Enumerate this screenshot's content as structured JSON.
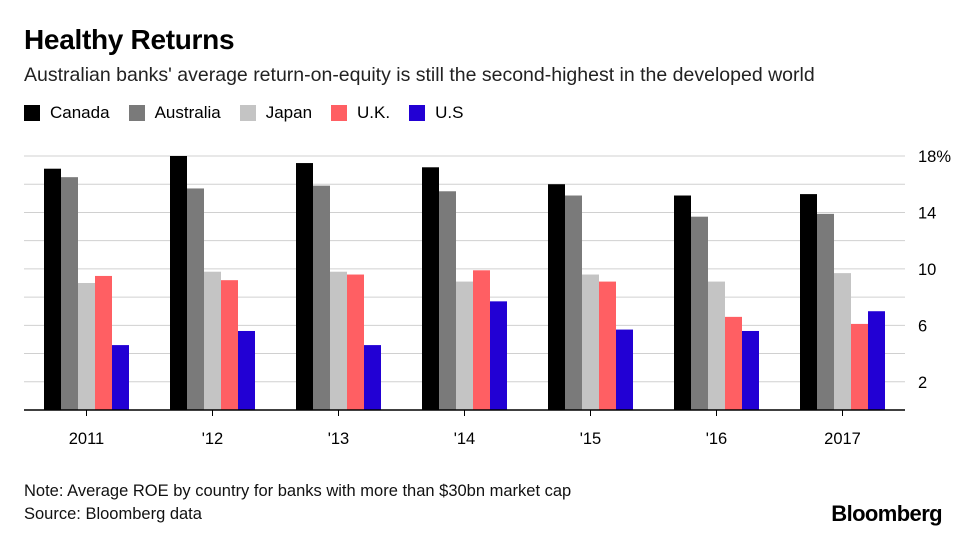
{
  "header": {
    "title": "Healthy Returns",
    "subtitle": "Australian banks' average return-on-equity is still the second-highest in the developed world"
  },
  "footer": {
    "note": "Note: Average ROE by country for banks with more than $30bn market cap",
    "source": "Source: Bloomberg data",
    "logo": "Bloomberg"
  },
  "chart_data": {
    "type": "bar",
    "categories": [
      "2011",
      "'12",
      "'13",
      "'14",
      "'15",
      "'16",
      "2017"
    ],
    "series": [
      {
        "name": "Canada",
        "color": "#000000",
        "values": [
          17.1,
          18.0,
          17.5,
          17.2,
          16.0,
          15.2,
          15.3
        ]
      },
      {
        "name": "Australia",
        "color": "#7a7a7a",
        "values": [
          16.5,
          15.7,
          15.9,
          15.5,
          15.2,
          13.7,
          13.9
        ]
      },
      {
        "name": "Japan",
        "color": "#c4c4c4",
        "values": [
          9.0,
          9.8,
          9.8,
          9.1,
          9.6,
          9.1,
          9.7
        ]
      },
      {
        "name": "U.K.",
        "color": "#ff5f63",
        "values": [
          9.5,
          9.2,
          9.6,
          9.9,
          9.1,
          6.6,
          6.1
        ]
      },
      {
        "name": "U.S",
        "color": "#2200d4",
        "values": [
          4.6,
          5.6,
          4.6,
          7.7,
          5.7,
          5.6,
          7.0
        ]
      }
    ],
    "y_ticks": [
      "2",
      "6",
      "10",
      "14",
      "18%"
    ],
    "y_tick_values": [
      2,
      6,
      10,
      14,
      18
    ],
    "ylim": [
      0,
      18
    ],
    "xlabel": "",
    "ylabel": "",
    "grid": true,
    "y_axis_side": "right",
    "legend_position": "top-left"
  }
}
